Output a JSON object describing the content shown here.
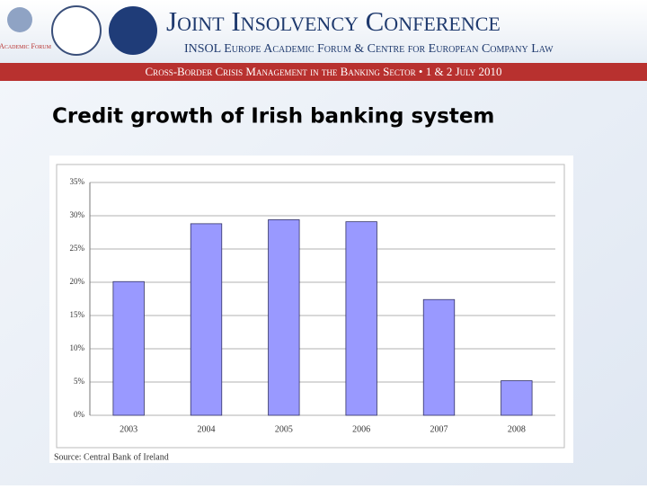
{
  "header": {
    "title": "Joint Insolvency Conference",
    "subtitle": "INSOL Europe Academic Forum & Centre for European Company Law",
    "banner": "Cross-Border Crisis Management in the Banking Sector • 1 & 2 July 2010",
    "logo": "Academic Forum"
  },
  "chart_data": {
    "type": "bar",
    "title": "Credit growth of Irish banking system",
    "source": "Source: Central Bank of Ireland",
    "categories": [
      "2003",
      "2004",
      "2005",
      "2006",
      "2007",
      "2008"
    ],
    "values": [
      20.1,
      28.8,
      29.4,
      29.1,
      17.4,
      5.2
    ],
    "color": "#9999ff",
    "ylim": [
      0,
      35
    ],
    "yticks": [
      {
        "value": 0,
        "label": "0%"
      },
      {
        "value": 5,
        "label": "5%"
      },
      {
        "value": 10,
        "label": "10%"
      },
      {
        "value": 15,
        "label": "15%"
      },
      {
        "value": 20,
        "label": "20%"
      },
      {
        "value": 25,
        "label": "25%"
      },
      {
        "value": 30,
        "label": "30%"
      },
      {
        "value": 35,
        "label": "35%"
      }
    ],
    "grid": true
  }
}
